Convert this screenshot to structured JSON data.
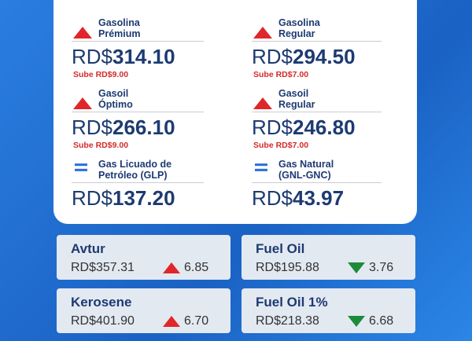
{
  "fuels": [
    {
      "name": [
        "Gasolina",
        "Prémium"
      ],
      "trend": "up",
      "currency": "RD$",
      "amount": "314.10",
      "change": "Sube RD$9.00"
    },
    {
      "name": [
        "Gasolina",
        "Regular"
      ],
      "trend": "up",
      "currency": "RD$",
      "amount": "294.50",
      "change": "Sube RD$7.00"
    },
    {
      "name": [
        "Gasoil",
        "Óptimo"
      ],
      "trend": "up",
      "currency": "RD$",
      "amount": "266.10",
      "change": "Sube RD$9.00"
    },
    {
      "name": [
        "Gasoil",
        "Regular"
      ],
      "trend": "up",
      "currency": "RD$",
      "amount": "246.80",
      "change": "Sube RD$7.00"
    },
    {
      "name": [
        "Gas Licuado de",
        "Petróleo (GLP)"
      ],
      "trend": "equal",
      "currency": "RD$",
      "amount": "137.20"
    },
    {
      "name": [
        "Gas Natural",
        "(GNL-GNC)"
      ],
      "trend": "equal",
      "currency": "RD$",
      "amount": "43.97"
    }
  ],
  "others": [
    {
      "name": "Avtur",
      "price": "RD$357.31",
      "trend": "up",
      "change": "6.85"
    },
    {
      "name": "Fuel Oil",
      "price": "RD$195.88",
      "trend": "down",
      "change": "3.76"
    },
    {
      "name": "Kerosene",
      "price": "RD$401.90",
      "trend": "up",
      "change": "6.70"
    },
    {
      "name": "Fuel Oil 1%",
      "price": "RD$218.38",
      "trend": "down",
      "change": "6.68"
    }
  ]
}
